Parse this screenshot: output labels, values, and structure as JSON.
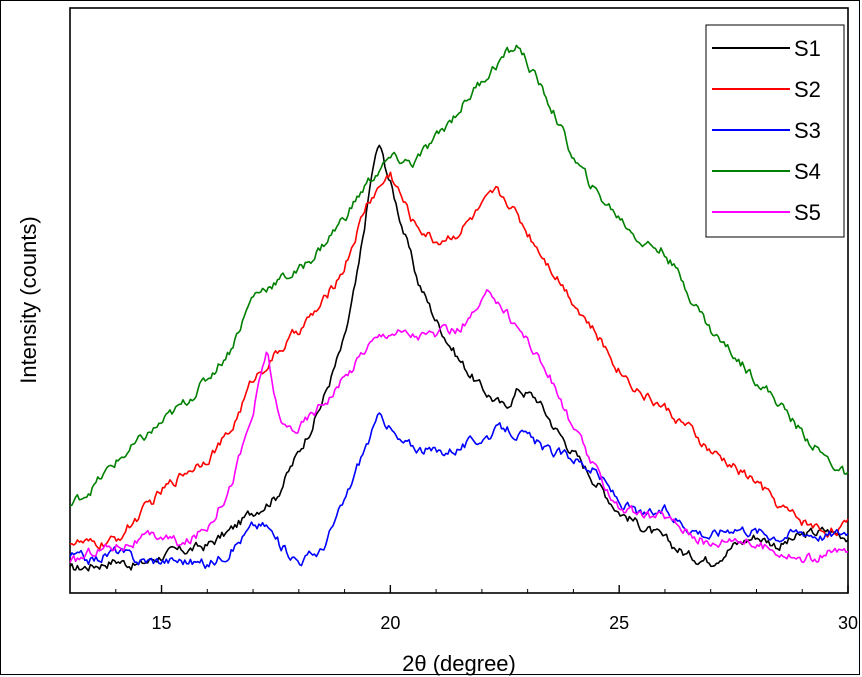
{
  "chart_data": {
    "type": "line",
    "xlabel": "2θ (degree)",
    "ylabel": "Intensity (counts)",
    "xlim": [
      13,
      30
    ],
    "ylim": [
      0,
      100
    ],
    "xticks": [
      15,
      20,
      25,
      30
    ],
    "grid": false,
    "legend_position": "top-right",
    "series": [
      {
        "name": "S1",
        "color": "#000000",
        "x": [
          13.0,
          13.5,
          14.0,
          14.5,
          15.0,
          15.5,
          16.0,
          16.5,
          17.0,
          17.5,
          18.0,
          18.5,
          19.0,
          19.3,
          19.6,
          19.75,
          20.0,
          20.3,
          20.6,
          21.0,
          21.5,
          22.0,
          22.5,
          22.8,
          23.2,
          23.6,
          24.0,
          24.5,
          25.0,
          25.5,
          26.0,
          26.5,
          27.0,
          27.5,
          28.0,
          28.5,
          29.0,
          29.5,
          30.0
        ],
        "y": [
          1,
          2,
          3,
          2,
          4,
          5,
          6,
          9,
          13,
          16,
          25,
          35,
          48,
          62,
          82,
          88,
          80,
          70,
          60,
          52,
          44,
          38,
          34,
          38,
          36,
          30,
          25,
          19,
          13,
          10,
          7,
          4,
          3,
          6,
          8,
          6,
          8,
          9,
          8
        ]
      },
      {
        "name": "S2",
        "color": "#ff0000",
        "x": [
          13.0,
          13.5,
          14.0,
          14.5,
          15.0,
          15.5,
          16.0,
          16.5,
          17.0,
          17.5,
          18.0,
          18.5,
          19.0,
          19.5,
          20.0,
          20.5,
          21.0,
          21.5,
          22.0,
          22.3,
          22.6,
          23.0,
          23.5,
          24.0,
          24.5,
          25.0,
          25.5,
          26.0,
          26.5,
          27.0,
          27.5,
          28.0,
          28.5,
          29.0,
          29.5,
          30.0
        ],
        "y": [
          7,
          6,
          7,
          12,
          17,
          21,
          24,
          29,
          40,
          45,
          50,
          55,
          63,
          76,
          82,
          72,
          68,
          70,
          75,
          78,
          76,
          70,
          63,
          56,
          49,
          42,
          37,
          34,
          30,
          25,
          22,
          19,
          14,
          11,
          9,
          10
        ]
      },
      {
        "name": "S3",
        "color": "#0000ff",
        "x": [
          13.0,
          13.5,
          14.0,
          14.5,
          15.0,
          15.5,
          16.0,
          16.5,
          17.0,
          17.3,
          17.6,
          18.0,
          18.5,
          19.0,
          19.4,
          19.8,
          20.2,
          20.6,
          21.0,
          21.5,
          22.0,
          22.5,
          23.0,
          23.5,
          24.0,
          24.5,
          25.0,
          25.5,
          26.0,
          26.5,
          27.0,
          27.5,
          28.0,
          28.5,
          29.0,
          29.5,
          30.0
        ],
        "y": [
          4,
          3,
          5,
          3,
          3,
          3,
          2,
          5,
          10,
          10,
          6,
          3,
          5,
          15,
          25,
          33,
          27,
          26,
          25,
          26,
          28,
          30,
          28,
          25,
          24,
          21,
          15,
          12,
          13,
          10,
          8,
          10,
          9,
          8,
          9,
          8,
          9
        ]
      },
      {
        "name": "S4",
        "color": "#008000",
        "x": [
          13.0,
          13.5,
          14.0,
          14.5,
          15.0,
          15.5,
          16.0,
          16.5,
          17.0,
          17.5,
          18.0,
          18.5,
          19.0,
          19.5,
          20.0,
          20.5,
          21.0,
          21.5,
          22.0,
          22.5,
          22.8,
          23.2,
          23.6,
          24.0,
          24.5,
          25.0,
          25.5,
          26.0,
          26.5,
          27.0,
          27.5,
          28.0,
          28.5,
          29.0,
          29.5,
          30.0
        ],
        "y": [
          14,
          18,
          23,
          27,
          31,
          35,
          40,
          46,
          57,
          60,
          62,
          67,
          73,
          80,
          85,
          84,
          89,
          95,
          101,
          106,
          108,
          101,
          94,
          85,
          78,
          73,
          68,
          66,
          58,
          50,
          45,
          40,
          35,
          29,
          24,
          20
        ]
      },
      {
        "name": "S5",
        "color": "#ff00ff",
        "x": [
          13.0,
          13.5,
          14.0,
          14.5,
          15.0,
          15.5,
          16.0,
          16.5,
          17.0,
          17.3,
          17.6,
          18.0,
          18.5,
          19.0,
          19.5,
          20.0,
          20.5,
          21.0,
          21.5,
          22.0,
          22.2,
          22.5,
          23.0,
          23.5,
          24.0,
          24.5,
          25.0,
          25.5,
          26.0,
          26.5,
          27.0,
          27.5,
          28.0,
          28.5,
          29.0,
          29.5,
          30.0
        ],
        "y": [
          2,
          5,
          6,
          7,
          8,
          6,
          10,
          18,
          33,
          46,
          30,
          30,
          35,
          40,
          47,
          50,
          49,
          49,
          50,
          55,
          58,
          54,
          48,
          40,
          30,
          21,
          14,
          12,
          12,
          9,
          6,
          8,
          6,
          5,
          3,
          4,
          5
        ]
      }
    ]
  }
}
